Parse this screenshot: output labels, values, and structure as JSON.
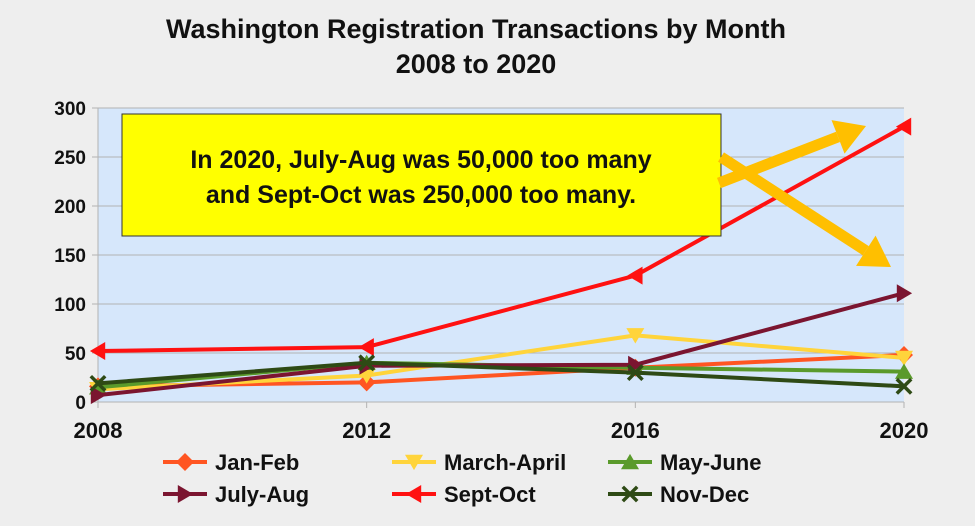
{
  "chart_data": {
    "type": "line",
    "title": "Washington Registration Transactions by Month",
    "subtitle": "2008 to 2020",
    "xlabel": "",
    "ylabel": "",
    "x": [
      "2008",
      "2012",
      "2016",
      "2020"
    ],
    "ylim": [
      0,
      300
    ],
    "yticks": [
      "0",
      "50",
      "100",
      "150",
      "200",
      "250",
      "300"
    ],
    "grid": true,
    "legend_position": "bottom",
    "series": [
      {
        "name": "Jan-Feb",
        "values": [
          16,
          20,
          35,
          48
        ],
        "color": "#ff5522",
        "marker": "diamond"
      },
      {
        "name": "March-April",
        "values": [
          13,
          27,
          68,
          45
        ],
        "color": "#ffd43b",
        "marker": "triangle-down"
      },
      {
        "name": "May-June",
        "values": [
          15,
          40,
          35,
          31
        ],
        "color": "#5a9a2b",
        "marker": "triangle-up"
      },
      {
        "name": "July-Aug",
        "values": [
          7,
          37,
          38,
          111
        ],
        "color": "#7b1530",
        "marker": "triangle-right"
      },
      {
        "name": "Sept-Oct",
        "values": [
          52,
          56,
          129,
          281
        ],
        "color": "#ff1111",
        "marker": "triangle-left"
      },
      {
        "name": "Nov-Dec",
        "values": [
          19,
          40,
          30,
          16
        ],
        "color": "#2e4a15",
        "marker": "x"
      }
    ],
    "annotation": {
      "lines": [
        "In 2020, July-Aug was 50,000 too many",
        "and Sept-Oct was 250,000 too many."
      ],
      "background": "#ffff00",
      "arrow_color": "#ffbf00"
    }
  }
}
